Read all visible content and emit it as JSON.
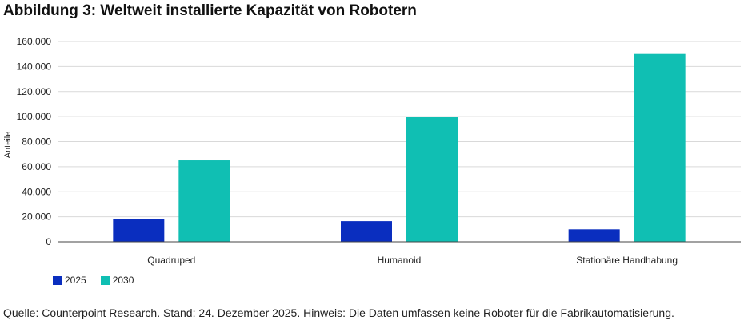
{
  "chart_data": {
    "type": "bar",
    "title": "Abbildung 3: Weltweit installierte Kapazität von Robotern",
    "ylabel": "Anteile",
    "xlabel": "",
    "categories": [
      "Quadruped",
      "Humanoid",
      "Stationäre Handhabung"
    ],
    "series": [
      {
        "name": "2025",
        "values": [
          18000,
          16500,
          10000
        ],
        "color": "#0a2ebf"
      },
      {
        "name": "2030",
        "values": [
          65000,
          100000,
          150000
        ],
        "color": "#10bfb3"
      }
    ],
    "ylim": [
      0,
      160000
    ],
    "yticks": [
      0,
      20000,
      40000,
      60000,
      80000,
      100000,
      120000,
      140000,
      160000
    ],
    "ytick_labels": [
      "0",
      "20.000",
      "40.000",
      "60.000",
      "80.000",
      "100.000",
      "120.000",
      "140.000",
      "160.000"
    ],
    "grid": true,
    "legend_position": "bottom-left"
  },
  "footnote": "Quelle: Counterpoint Research. Stand: 24. Dezember 2025. Hinweis: Die Daten umfassen keine Roboter für die Fabrikautomatisierung."
}
